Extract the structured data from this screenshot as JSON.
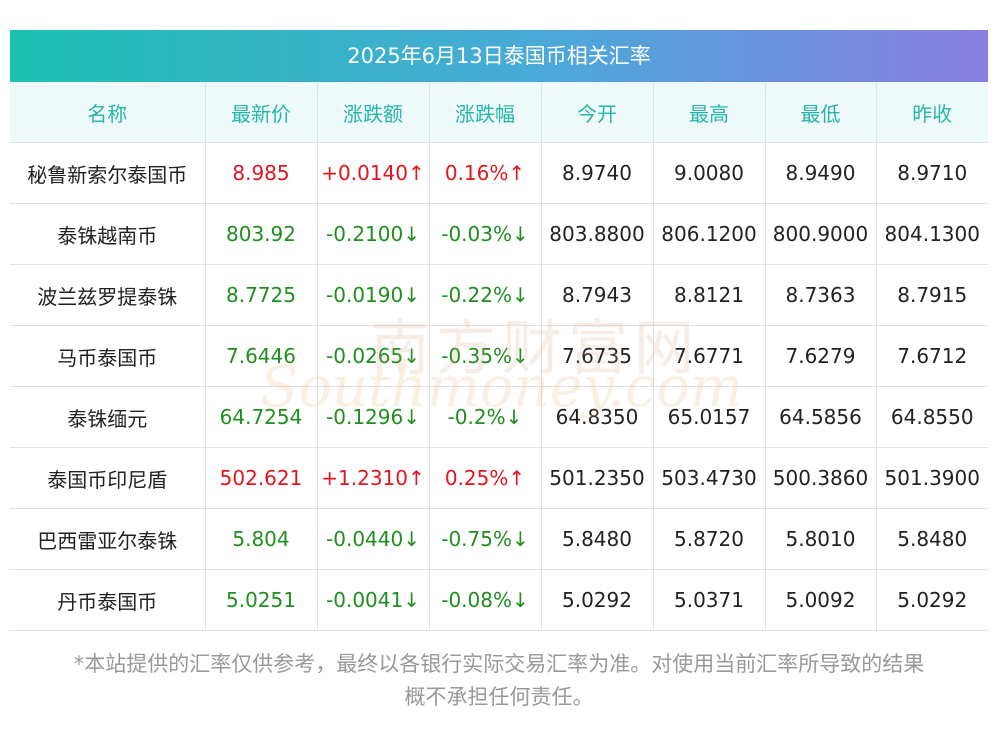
{
  "title": "2025年6月13日泰国币相关汇率",
  "columns": [
    "名称",
    "最新价",
    "涨跌额",
    "涨跌幅",
    "今开",
    "最高",
    "最低",
    "昨收"
  ],
  "rows": [
    {
      "name": "秘鲁新索尔泰国币",
      "latest": "8.985",
      "change": "+0.0140↑",
      "pct": "0.16%↑",
      "open": "8.9740",
      "high": "9.0080",
      "low": "8.9490",
      "prev": "8.9710",
      "dir": "up"
    },
    {
      "name": "泰铢越南币",
      "latest": "803.92",
      "change": "-0.2100↓",
      "pct": "-0.03%↓",
      "open": "803.8800",
      "high": "806.1200",
      "low": "800.9000",
      "prev": "804.1300",
      "dir": "down"
    },
    {
      "name": "波兰兹罗提泰铢",
      "latest": "8.7725",
      "change": "-0.0190↓",
      "pct": "-0.22%↓",
      "open": "8.7943",
      "high": "8.8121",
      "low": "8.7363",
      "prev": "8.7915",
      "dir": "down"
    },
    {
      "name": "马币泰国币",
      "latest": "7.6446",
      "change": "-0.0265↓",
      "pct": "-0.35%↓",
      "open": "7.6735",
      "high": "7.6771",
      "low": "7.6279",
      "prev": "7.6712",
      "dir": "down"
    },
    {
      "name": "泰铢缅元",
      "latest": "64.7254",
      "change": "-0.1296↓",
      "pct": "-0.2%↓",
      "open": "64.8350",
      "high": "65.0157",
      "low": "64.5856",
      "prev": "64.8550",
      "dir": "down"
    },
    {
      "name": "泰国币印尼盾",
      "latest": "502.621",
      "change": "+1.2310↑",
      "pct": "0.25%↑",
      "open": "501.2350",
      "high": "503.4730",
      "low": "500.3860",
      "prev": "501.3900",
      "dir": "up"
    },
    {
      "name": "巴西雷亚尔泰铢",
      "latest": "5.804",
      "change": "-0.0440↓",
      "pct": "-0.75%↓",
      "open": "5.8480",
      "high": "5.8720",
      "low": "5.8010",
      "prev": "5.8480",
      "dir": "down"
    },
    {
      "name": "丹币泰国币",
      "latest": "5.0251",
      "change": "-0.0041↓",
      "pct": "-0.08%↓",
      "open": "5.0292",
      "high": "5.0371",
      "low": "5.0092",
      "prev": "5.0292",
      "dir": "down"
    }
  ],
  "disclaimer_line1": "*本站提供的汇率仅供参考，最终以各银行实际交易汇率为准。对使用当前汇率所导致的结果",
  "disclaimer_line2": "概不承担任何责任。",
  "watermark": {
    "cn": "南方财富网",
    "en": "Southmoney.com"
  },
  "colors": {
    "up": "#e0161e",
    "down": "#1f8f1f",
    "header_text": "#27b5ac",
    "title_gradient_start": "#1dbfb1",
    "title_gradient_end": "#8a7ee3"
  }
}
